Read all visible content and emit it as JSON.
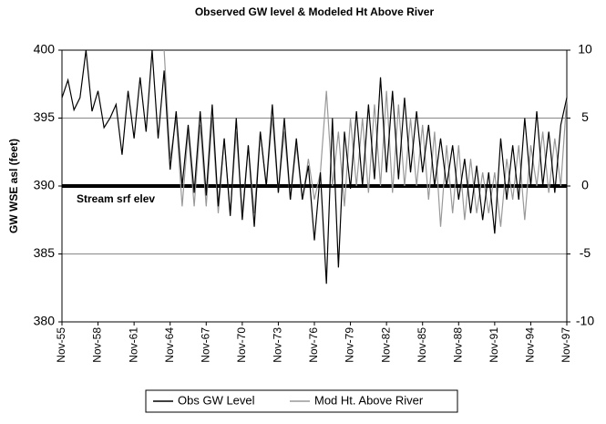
{
  "chart_data": {
    "type": "line",
    "title": "Observed GW level & Modeled Ht Above River",
    "y_label": "GW WSE asl (feet)",
    "x": [
      1955.83,
      1956.33,
      1956.83,
      1957.33,
      1957.83,
      1958.33,
      1958.83,
      1959.33,
      1959.83,
      1960.33,
      1960.83,
      1961.33,
      1961.83,
      1962.33,
      1962.83,
      1963.33,
      1963.83,
      1964.33,
      1964.83,
      1965.33,
      1965.83,
      1966.33,
      1966.83,
      1967.33,
      1967.83,
      1968.33,
      1968.83,
      1969.33,
      1969.83,
      1970.33,
      1970.83,
      1971.33,
      1971.83,
      1972.33,
      1972.83,
      1973.33,
      1973.83,
      1974.33,
      1974.83,
      1975.33,
      1975.83,
      1976.33,
      1976.83,
      1977.33,
      1977.83,
      1978.33,
      1978.83,
      1979.33,
      1979.83,
      1980.33,
      1980.83,
      1981.33,
      1981.83,
      1982.33,
      1982.83,
      1983.33,
      1983.83,
      1984.33,
      1984.83,
      1985.33,
      1985.83,
      1986.33,
      1986.83,
      1987.33,
      1987.83,
      1988.33,
      1988.83,
      1989.33,
      1989.83,
      1990.33,
      1990.83,
      1991.33,
      1991.83,
      1992.33,
      1992.83,
      1993.33,
      1993.83,
      1994.33,
      1994.83,
      1995.33,
      1995.83,
      1996.33,
      1996.83,
      1997.33,
      1997.83
    ],
    "series": [
      {
        "name": "Obs GW Level",
        "color": "#000000",
        "axis": "y",
        "values": [
          396.5,
          397.8,
          395.6,
          396.5,
          400,
          395.5,
          397,
          394.3,
          395,
          396,
          392.3,
          397,
          393.5,
          398,
          394,
          400,
          393.5,
          398.5,
          391.2,
          395.5,
          390,
          394.5,
          389.5,
          395.5,
          389.3,
          396,
          388.5,
          393.5,
          387.8,
          395,
          387.5,
          393,
          387,
          394,
          390,
          396,
          389.5,
          395,
          389,
          393.5,
          389,
          391.5,
          386,
          391,
          382.8,
          395,
          384,
          394,
          389.8,
          395.5,
          390,
          396,
          390.5,
          398,
          391,
          397,
          390.5,
          396.5,
          391,
          395.5,
          391,
          394.5,
          390,
          393.5,
          390,
          393,
          389,
          392,
          388,
          391.5,
          387.5,
          391,
          386.5,
          393.5,
          389,
          393,
          389,
          395,
          390,
          395.5,
          390,
          394,
          389.5,
          394.5,
          396.5
        ]
      },
      {
        "name": "Mod Ht. Above River",
        "color": "#999999",
        "axis": "y2",
        "values": [
          null,
          null,
          null,
          null,
          null,
          null,
          null,
          null,
          null,
          null,
          null,
          null,
          null,
          null,
          null,
          null,
          null,
          10,
          2,
          5,
          -1.5,
          4,
          -1.5,
          4.5,
          -1.5,
          5,
          -2,
          3.5,
          -2,
          4,
          -2,
          3,
          -2,
          4,
          0,
          5,
          -0.5,
          4,
          -1,
          3,
          -1,
          2,
          -1,
          1,
          7,
          0,
          4,
          -1.5,
          5,
          0,
          5,
          -0.5,
          6,
          0,
          7,
          -0.5,
          6,
          0,
          5,
          0,
          4.5,
          -1,
          4,
          -3,
          3,
          -2,
          3,
          -2.5,
          2,
          -2,
          1,
          -2,
          1,
          -3,
          2,
          -1,
          3,
          -2.5,
          3,
          0,
          4,
          -0.5,
          3.5,
          0,
          6.5
        ]
      }
    ],
    "xlim": [
      1955.83,
      1997.83
    ],
    "xticks": [
      {
        "value": 1955.83,
        "label": "Nov-55"
      },
      {
        "value": 1958.83,
        "label": "Nov-58"
      },
      {
        "value": 1961.83,
        "label": "Nov-61"
      },
      {
        "value": 1964.83,
        "label": "Nov-64"
      },
      {
        "value": 1967.83,
        "label": "Nov-67"
      },
      {
        "value": 1970.83,
        "label": "Nov-70"
      },
      {
        "value": 1973.83,
        "label": "Nov-73"
      },
      {
        "value": 1976.83,
        "label": "Nov-76"
      },
      {
        "value": 1979.83,
        "label": "Nov-79"
      },
      {
        "value": 1982.83,
        "label": "Nov-82"
      },
      {
        "value": 1985.83,
        "label": "Nov-85"
      },
      {
        "value": 1988.83,
        "label": "Nov-88"
      },
      {
        "value": 1991.83,
        "label": "Nov-91"
      },
      {
        "value": 1994.83,
        "label": "Nov-94"
      },
      {
        "value": 1997.83,
        "label": "Nov-97"
      }
    ],
    "ylim": [
      380,
      400
    ],
    "yticks": [
      380,
      385,
      390,
      395,
      400
    ],
    "y2lim": [
      -10,
      10
    ],
    "y2ticks": [
      -10,
      -5,
      0,
      5,
      10
    ],
    "grid": true,
    "reference_line": {
      "value": 390,
      "label": "Stream srf elev"
    },
    "legend": "bottom"
  }
}
